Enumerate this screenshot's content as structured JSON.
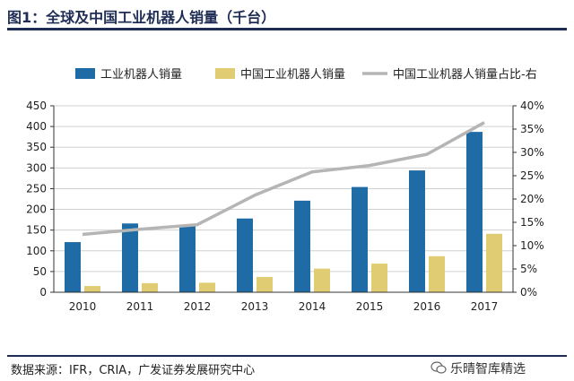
{
  "title": "图1：全球及中国工业机器人销量（千台）",
  "source": "数据来源：IFR，CRIA，广发证券发展研究中心",
  "watermark": "乐晴智库精选",
  "colors": {
    "world": "#1f6ba5",
    "china": "#e0cc72",
    "share": "#b5b5b5",
    "axis": "#333333",
    "grid": "#d0d0d0",
    "title": "#1f2d54"
  },
  "chart_data": {
    "type": "bar",
    "categories": [
      "2010",
      "2011",
      "2012",
      "2013",
      "2014",
      "2015",
      "2016",
      "2017"
    ],
    "series": [
      {
        "name": "工业机器人销量",
        "type": "bar",
        "axis": "left",
        "values": [
          121,
          166,
          159,
          178,
          221,
          254,
          294,
          387
        ]
      },
      {
        "name": "中国工业机器人销量",
        "type": "bar",
        "axis": "left",
        "values": [
          15,
          22,
          23,
          37,
          57,
          69,
          87,
          141
        ]
      },
      {
        "name": "中国工业机器人销量占比-右",
        "type": "line",
        "axis": "right",
        "values": [
          12.4,
          13.5,
          14.5,
          20.8,
          25.8,
          27.2,
          29.6,
          36.4
        ]
      }
    ],
    "y_left": {
      "min": 0,
      "max": 450,
      "ticks": [
        "0",
        "50",
        "100",
        "150",
        "200",
        "250",
        "300",
        "350",
        "400",
        "450"
      ]
    },
    "y_right": {
      "min": 0,
      "max": 40,
      "ticks": [
        "0%",
        "5%",
        "10%",
        "15%",
        "20%",
        "25%",
        "30%",
        "35%",
        "40%"
      ]
    },
    "grid": true,
    "legend": "top"
  }
}
